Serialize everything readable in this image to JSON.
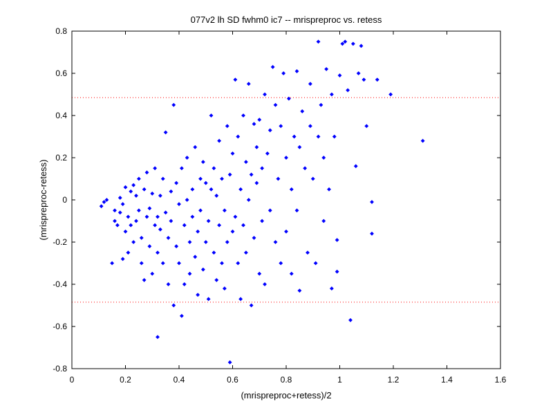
{
  "chart_data": {
    "type": "scatter",
    "title": "077v2 lh SD fwhm0 ic7 -- mrispreproc vs. retess",
    "xlabel": "(mrispreproc+retess)/2",
    "ylabel": "(mrispreproc-retess)",
    "xlim": [
      0,
      1.6
    ],
    "ylim": [
      -0.8,
      0.8
    ],
    "xticks": [
      0,
      0.2,
      0.4,
      0.6,
      0.8,
      1,
      1.2,
      1.4,
      1.6
    ],
    "xtick_labels": [
      "0",
      "0.2",
      "0.4",
      "0.6",
      "0.8",
      "1",
      "1.2",
      "1.4",
      "1.6"
    ],
    "yticks": [
      -0.8,
      -0.6,
      -0.4,
      -0.2,
      0,
      0.2,
      0.4,
      0.6,
      0.8
    ],
    "ytick_labels": [
      "-0.8",
      "-0.6",
      "-0.4",
      "-0.2",
      "0",
      "0.2",
      "0.4",
      "0.6",
      "0.8"
    ],
    "grid": false,
    "reference_lines": [
      {
        "axis": "y",
        "value": 0.485,
        "style": "dotted",
        "color": "#ff0000"
      },
      {
        "axis": "y",
        "value": -0.485,
        "style": "dotted",
        "color": "#ff0000"
      }
    ],
    "marker_color": "#0000ff",
    "series": [
      {
        "points": [
          [
            0.11,
            -0.03
          ],
          [
            0.12,
            -0.01
          ],
          [
            0.13,
            0.0
          ],
          [
            0.15,
            -0.3
          ],
          [
            0.16,
            -0.1
          ],
          [
            0.16,
            -0.05
          ],
          [
            0.17,
            -0.12
          ],
          [
            0.18,
            0.01
          ],
          [
            0.18,
            -0.06
          ],
          [
            0.19,
            -0.28
          ],
          [
            0.19,
            -0.02
          ],
          [
            0.2,
            0.06
          ],
          [
            0.2,
            -0.15
          ],
          [
            0.21,
            -0.08
          ],
          [
            0.21,
            -0.25
          ],
          [
            0.22,
            0.04
          ],
          [
            0.22,
            -0.12
          ],
          [
            0.23,
            0.07
          ],
          [
            0.23,
            -0.2
          ],
          [
            0.24,
            -0.1
          ],
          [
            0.24,
            0.02
          ],
          [
            0.25,
            -0.05
          ],
          [
            0.25,
            0.1
          ],
          [
            0.26,
            -0.3
          ],
          [
            0.26,
            -0.18
          ],
          [
            0.27,
            0.05
          ],
          [
            0.27,
            -0.38
          ],
          [
            0.28,
            -0.08
          ],
          [
            0.28,
            0.13
          ],
          [
            0.29,
            -0.22
          ],
          [
            0.29,
            -0.04
          ],
          [
            0.3,
            0.03
          ],
          [
            0.3,
            -0.35
          ],
          [
            0.31,
            -0.12
          ],
          [
            0.31,
            0.15
          ],
          [
            0.32,
            -0.25
          ],
          [
            0.32,
            -0.08
          ],
          [
            0.32,
            -0.65
          ],
          [
            0.33,
            0.02
          ],
          [
            0.33,
            -0.14
          ],
          [
            0.34,
            -0.3
          ],
          [
            0.34,
            0.1
          ],
          [
            0.35,
            -0.06
          ],
          [
            0.35,
            0.32
          ],
          [
            0.36,
            -0.18
          ],
          [
            0.36,
            -0.4
          ],
          [
            0.37,
            0.04
          ],
          [
            0.37,
            -0.1
          ],
          [
            0.38,
            0.45
          ],
          [
            0.38,
            -0.5
          ],
          [
            0.39,
            -0.22
          ],
          [
            0.39,
            0.08
          ],
          [
            0.4,
            -0.3
          ],
          [
            0.4,
            -0.02
          ],
          [
            0.41,
            0.15
          ],
          [
            0.41,
            -0.55
          ],
          [
            0.42,
            -0.12
          ],
          [
            0.42,
            -0.4
          ],
          [
            0.43,
            0.2
          ],
          [
            0.43,
            0.0
          ],
          [
            0.44,
            -0.2
          ],
          [
            0.44,
            -0.35
          ],
          [
            0.45,
            0.05
          ],
          [
            0.45,
            -0.08
          ],
          [
            0.46,
            -0.27
          ],
          [
            0.46,
            0.25
          ],
          [
            0.47,
            -0.45
          ],
          [
            0.47,
            -0.15
          ],
          [
            0.48,
            0.1
          ],
          [
            0.48,
            -0.05
          ],
          [
            0.49,
            -0.33
          ],
          [
            0.49,
            0.18
          ],
          [
            0.5,
            -0.2
          ],
          [
            0.5,
            0.08
          ],
          [
            0.51,
            -0.47
          ],
          [
            0.51,
            -0.1
          ],
          [
            0.52,
            0.4
          ],
          [
            0.52,
            0.05
          ],
          [
            0.53,
            -0.25
          ],
          [
            0.53,
            0.15
          ],
          [
            0.54,
            -0.38
          ],
          [
            0.54,
            0.02
          ],
          [
            0.55,
            -0.12
          ],
          [
            0.55,
            0.28
          ],
          [
            0.56,
            -0.3
          ],
          [
            0.56,
            0.1
          ],
          [
            0.57,
            -0.05
          ],
          [
            0.57,
            -0.42
          ],
          [
            0.58,
            0.35
          ],
          [
            0.58,
            -0.2
          ],
          [
            0.59,
            -0.77
          ],
          [
            0.59,
            0.12
          ],
          [
            0.6,
            -0.15
          ],
          [
            0.6,
            0.22
          ],
          [
            0.61,
            0.57
          ],
          [
            0.61,
            -0.08
          ],
          [
            0.62,
            0.3
          ],
          [
            0.62,
            -0.3
          ],
          [
            0.63,
            0.05
          ],
          [
            0.63,
            -0.47
          ],
          [
            0.64,
            0.4
          ],
          [
            0.64,
            -0.12
          ],
          [
            0.65,
            0.18
          ],
          [
            0.65,
            -0.25
          ],
          [
            0.66,
            0.55
          ],
          [
            0.66,
            0.0
          ],
          [
            0.67,
            -0.5
          ],
          [
            0.67,
            0.12
          ],
          [
            0.68,
            0.36
          ],
          [
            0.68,
            -0.18
          ],
          [
            0.69,
            0.25
          ],
          [
            0.69,
            0.08
          ],
          [
            0.7,
            -0.35
          ],
          [
            0.7,
            0.38
          ],
          [
            0.71,
            0.15
          ],
          [
            0.71,
            -0.1
          ],
          [
            0.72,
            0.5
          ],
          [
            0.72,
            -0.4
          ],
          [
            0.73,
            0.22
          ],
          [
            0.74,
            -0.05
          ],
          [
            0.74,
            0.33
          ],
          [
            0.75,
            0.63
          ],
          [
            0.76,
            -0.2
          ],
          [
            0.76,
            0.45
          ],
          [
            0.77,
            0.1
          ],
          [
            0.78,
            -0.3
          ],
          [
            0.78,
            0.35
          ],
          [
            0.79,
            0.6
          ],
          [
            0.8,
            0.2
          ],
          [
            0.8,
            -0.15
          ],
          [
            0.81,
            0.48
          ],
          [
            0.82,
            0.05
          ],
          [
            0.82,
            -0.35
          ],
          [
            0.83,
            0.3
          ],
          [
            0.84,
            0.61
          ],
          [
            0.84,
            -0.05
          ],
          [
            0.85,
            0.25
          ],
          [
            0.85,
            -0.43
          ],
          [
            0.86,
            0.42
          ],
          [
            0.87,
            0.15
          ],
          [
            0.88,
            -0.25
          ],
          [
            0.89,
            0.55
          ],
          [
            0.89,
            0.35
          ],
          [
            0.9,
            0.1
          ],
          [
            0.91,
            -0.3
          ],
          [
            0.92,
            0.75
          ],
          [
            0.92,
            0.3
          ],
          [
            0.93,
            0.45
          ],
          [
            0.94,
            0.2
          ],
          [
            0.94,
            -0.1
          ],
          [
            0.95,
            0.62
          ],
          [
            0.96,
            0.05
          ],
          [
            0.97,
            0.5
          ],
          [
            0.97,
            -0.42
          ],
          [
            0.98,
            0.3
          ],
          [
            0.99,
            -0.19
          ],
          [
            0.99,
            -0.34
          ],
          [
            1.0,
            0.59
          ],
          [
            1.01,
            0.74
          ],
          [
            1.02,
            0.75
          ],
          [
            1.03,
            0.52
          ],
          [
            1.04,
            -0.57
          ],
          [
            1.05,
            0.74
          ],
          [
            1.06,
            0.16
          ],
          [
            1.07,
            0.6
          ],
          [
            1.08,
            0.73
          ],
          [
            1.09,
            0.57
          ],
          [
            1.1,
            0.35
          ],
          [
            1.12,
            -0.01
          ],
          [
            1.12,
            -0.16
          ],
          [
            1.14,
            0.57
          ],
          [
            1.19,
            0.5
          ],
          [
            1.31,
            0.28
          ]
        ]
      }
    ]
  }
}
